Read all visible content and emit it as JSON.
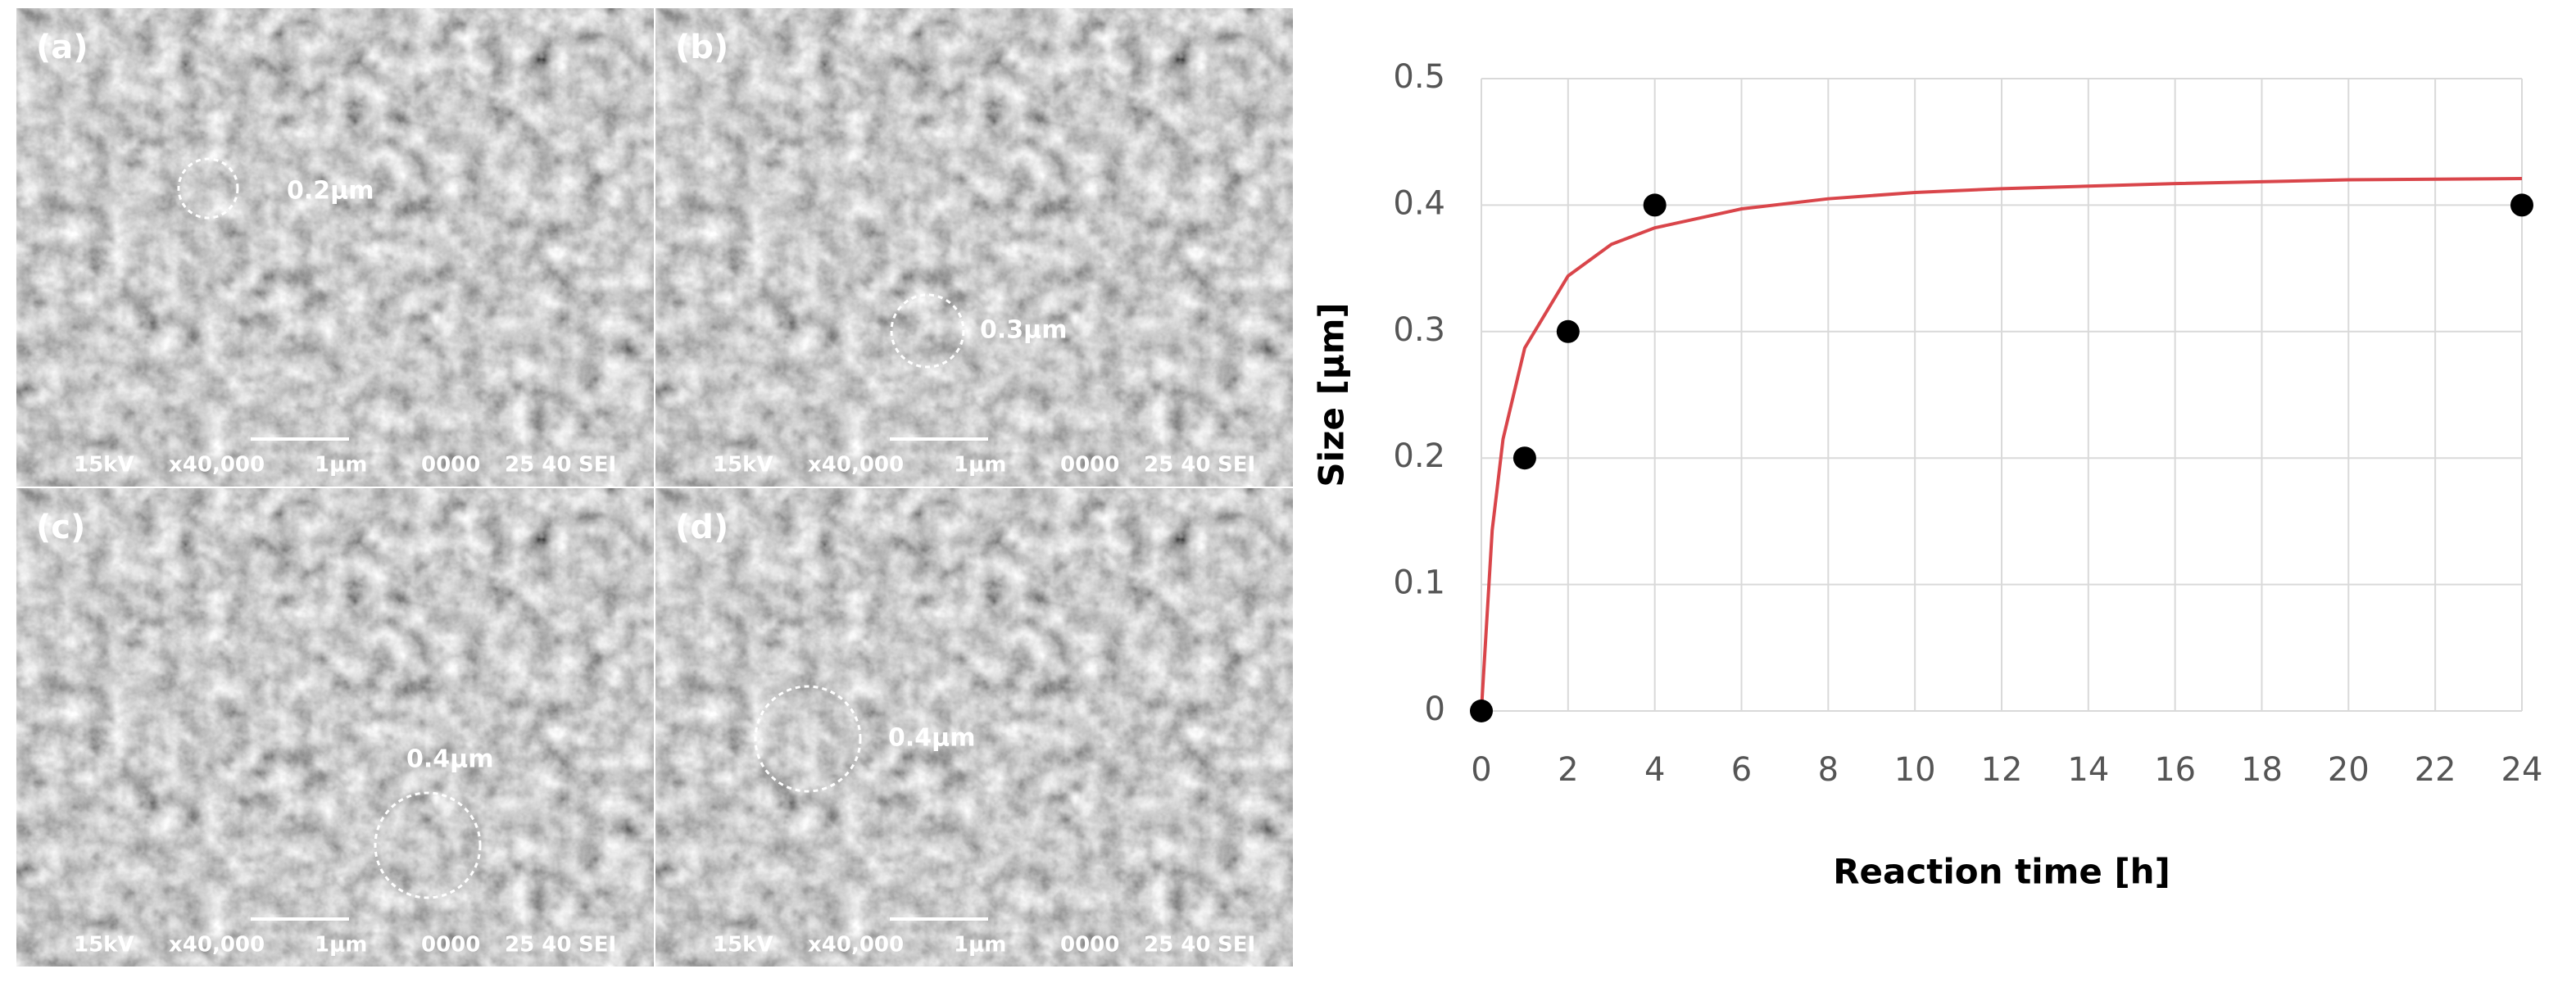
{
  "panels": [
    {
      "label": "(a)",
      "size_label": "0.2μm"
    },
    {
      "label": "(b)",
      "size_label": "0.3μm"
    },
    {
      "label": "(c)",
      "size_label": "0.4μm"
    },
    {
      "label": "(d)",
      "size_label": "0.4μm"
    }
  ],
  "info_bar": [
    "15kV",
    "x40,000",
    "1μm",
    "0000",
    "25 40",
    "SEI"
  ],
  "chart_data": {
    "type": "scatter",
    "xlabel": "Reaction time [h]",
    "ylabel": "Size [μm]",
    "xlim": [
      0,
      24
    ],
    "ylim": [
      0,
      0.5
    ],
    "xticks": [
      0,
      2,
      4,
      6,
      8,
      10,
      12,
      14,
      16,
      18,
      20,
      22,
      24
    ],
    "yticks": [
      0,
      0.1,
      0.2,
      0.3,
      0.4,
      0.5
    ],
    "grid": true,
    "series": [
      {
        "type": "scatter",
        "color": "#000000",
        "x": [
          0,
          1,
          2,
          4,
          24
        ],
        "values": [
          0,
          0.2,
          0.3,
          0.4,
          0.4
        ]
      },
      {
        "type": "line",
        "color": "#d9454a",
        "x": [
          0,
          0.25,
          0.5,
          1,
          2,
          3,
          4,
          6,
          8,
          10,
          12,
          16,
          20,
          24
        ],
        "values": [
          0,
          0.143,
          0.215,
          0.287,
          0.344,
          0.369,
          0.382,
          0.397,
          0.405,
          0.41,
          0.413,
          0.417,
          0.42,
          0.421
        ]
      }
    ]
  }
}
